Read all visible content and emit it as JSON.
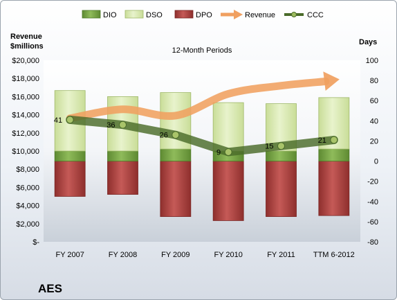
{
  "chart_data": {
    "type": "bar",
    "title": "12-Month Periods",
    "company": "AES",
    "left_axis_label": [
      "Revenue",
      "$millions"
    ],
    "right_axis_label": "Days",
    "categories": [
      "FY 2007",
      "FY 2008",
      "FY 2009",
      "FY 2010",
      "FY 2011",
      "TTM 6-2012"
    ],
    "left_axis": {
      "min": 0,
      "max": 20000,
      "step": 2000,
      "tick_labels": [
        "$-",
        "$2,000",
        "$4,000",
        "$6,000",
        "$8,000",
        "$10,000",
        "$12,000",
        "$14,000",
        "$16,000",
        "$18,000",
        "$20,000"
      ]
    },
    "right_axis": {
      "min": -80,
      "max": 100,
      "step": 20,
      "tick_labels": [
        "-80",
        "-60",
        "-40",
        "-20",
        "0",
        "20",
        "40",
        "60",
        "80",
        "100"
      ]
    },
    "legend": {
      "position": "top",
      "items": [
        {
          "name": "DIO",
          "kind": "bar",
          "color": "#7aa84a"
        },
        {
          "name": "DSO",
          "kind": "bar",
          "color": "#d7e8b0"
        },
        {
          "name": "DPO",
          "kind": "bar",
          "color": "#c0504d"
        },
        {
          "name": "Revenue",
          "kind": "arrow",
          "color": "#f0a060"
        },
        {
          "name": "CCC",
          "kind": "line",
          "color": "#4a6b2a"
        }
      ]
    },
    "series": [
      {
        "name": "DIO",
        "axis": "days",
        "values": [
          10,
          10,
          12,
          10,
          10,
          12
        ]
      },
      {
        "name": "DSO",
        "axis": "days",
        "values": [
          60,
          54,
          56,
          48,
          47,
          51
        ]
      },
      {
        "name": "DPO",
        "axis": "days",
        "values": [
          -35,
          -33,
          -55,
          -59,
          -55,
          -54
        ]
      },
      {
        "name": "Revenue",
        "axis": "revenue",
        "values": [
          13600,
          14600,
          13900,
          16300,
          17200,
          17900
        ]
      },
      {
        "name": "CCC",
        "axis": "days",
        "values": [
          41,
          36,
          26,
          9,
          15,
          21
        ],
        "data_labels": [
          "41",
          "36",
          "26",
          "9",
          "15",
          "21"
        ]
      }
    ],
    "grid": false
  }
}
